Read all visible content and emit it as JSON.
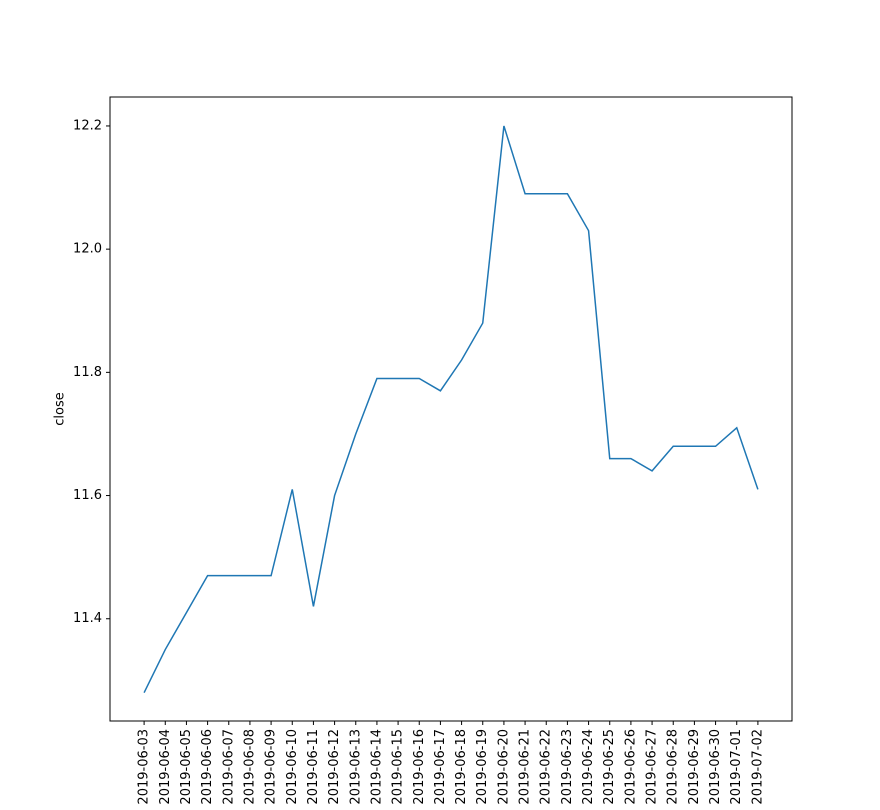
{
  "chart_data": {
    "type": "line",
    "y_label": "close",
    "categories": [
      "2019-06-03",
      "2019-06-04",
      "2019-06-05",
      "2019-06-06",
      "2019-06-07",
      "2019-06-08",
      "2019-06-09",
      "2019-06-10",
      "2019-06-11",
      "2019-06-12",
      "2019-06-13",
      "2019-06-14",
      "2019-06-15",
      "2019-06-16",
      "2019-06-17",
      "2019-06-18",
      "2019-06-19",
      "2019-06-20",
      "2019-06-21",
      "2019-06-22",
      "2019-06-23",
      "2019-06-24",
      "2019-06-25",
      "2019-06-26",
      "2019-06-27",
      "2019-06-28",
      "2019-06-29",
      "2019-06-30",
      "2019-07-01",
      "2019-07-02"
    ],
    "values": [
      11.28,
      11.35,
      11.41,
      11.47,
      11.47,
      11.47,
      11.47,
      11.61,
      11.42,
      11.6,
      11.7,
      11.79,
      11.79,
      11.79,
      11.77,
      11.82,
      11.88,
      12.2,
      12.09,
      12.09,
      12.09,
      12.03,
      11.66,
      11.66,
      11.64,
      11.68,
      11.68,
      11.68,
      11.71,
      11.61
    ],
    "color": "#1f77b4",
    "ylim": [
      11.234,
      12.247
    ],
    "yticks": [
      11.4,
      11.6,
      11.8,
      {
        "value": 12,
        "label": "12.0"
      },
      12.2
    ]
  }
}
